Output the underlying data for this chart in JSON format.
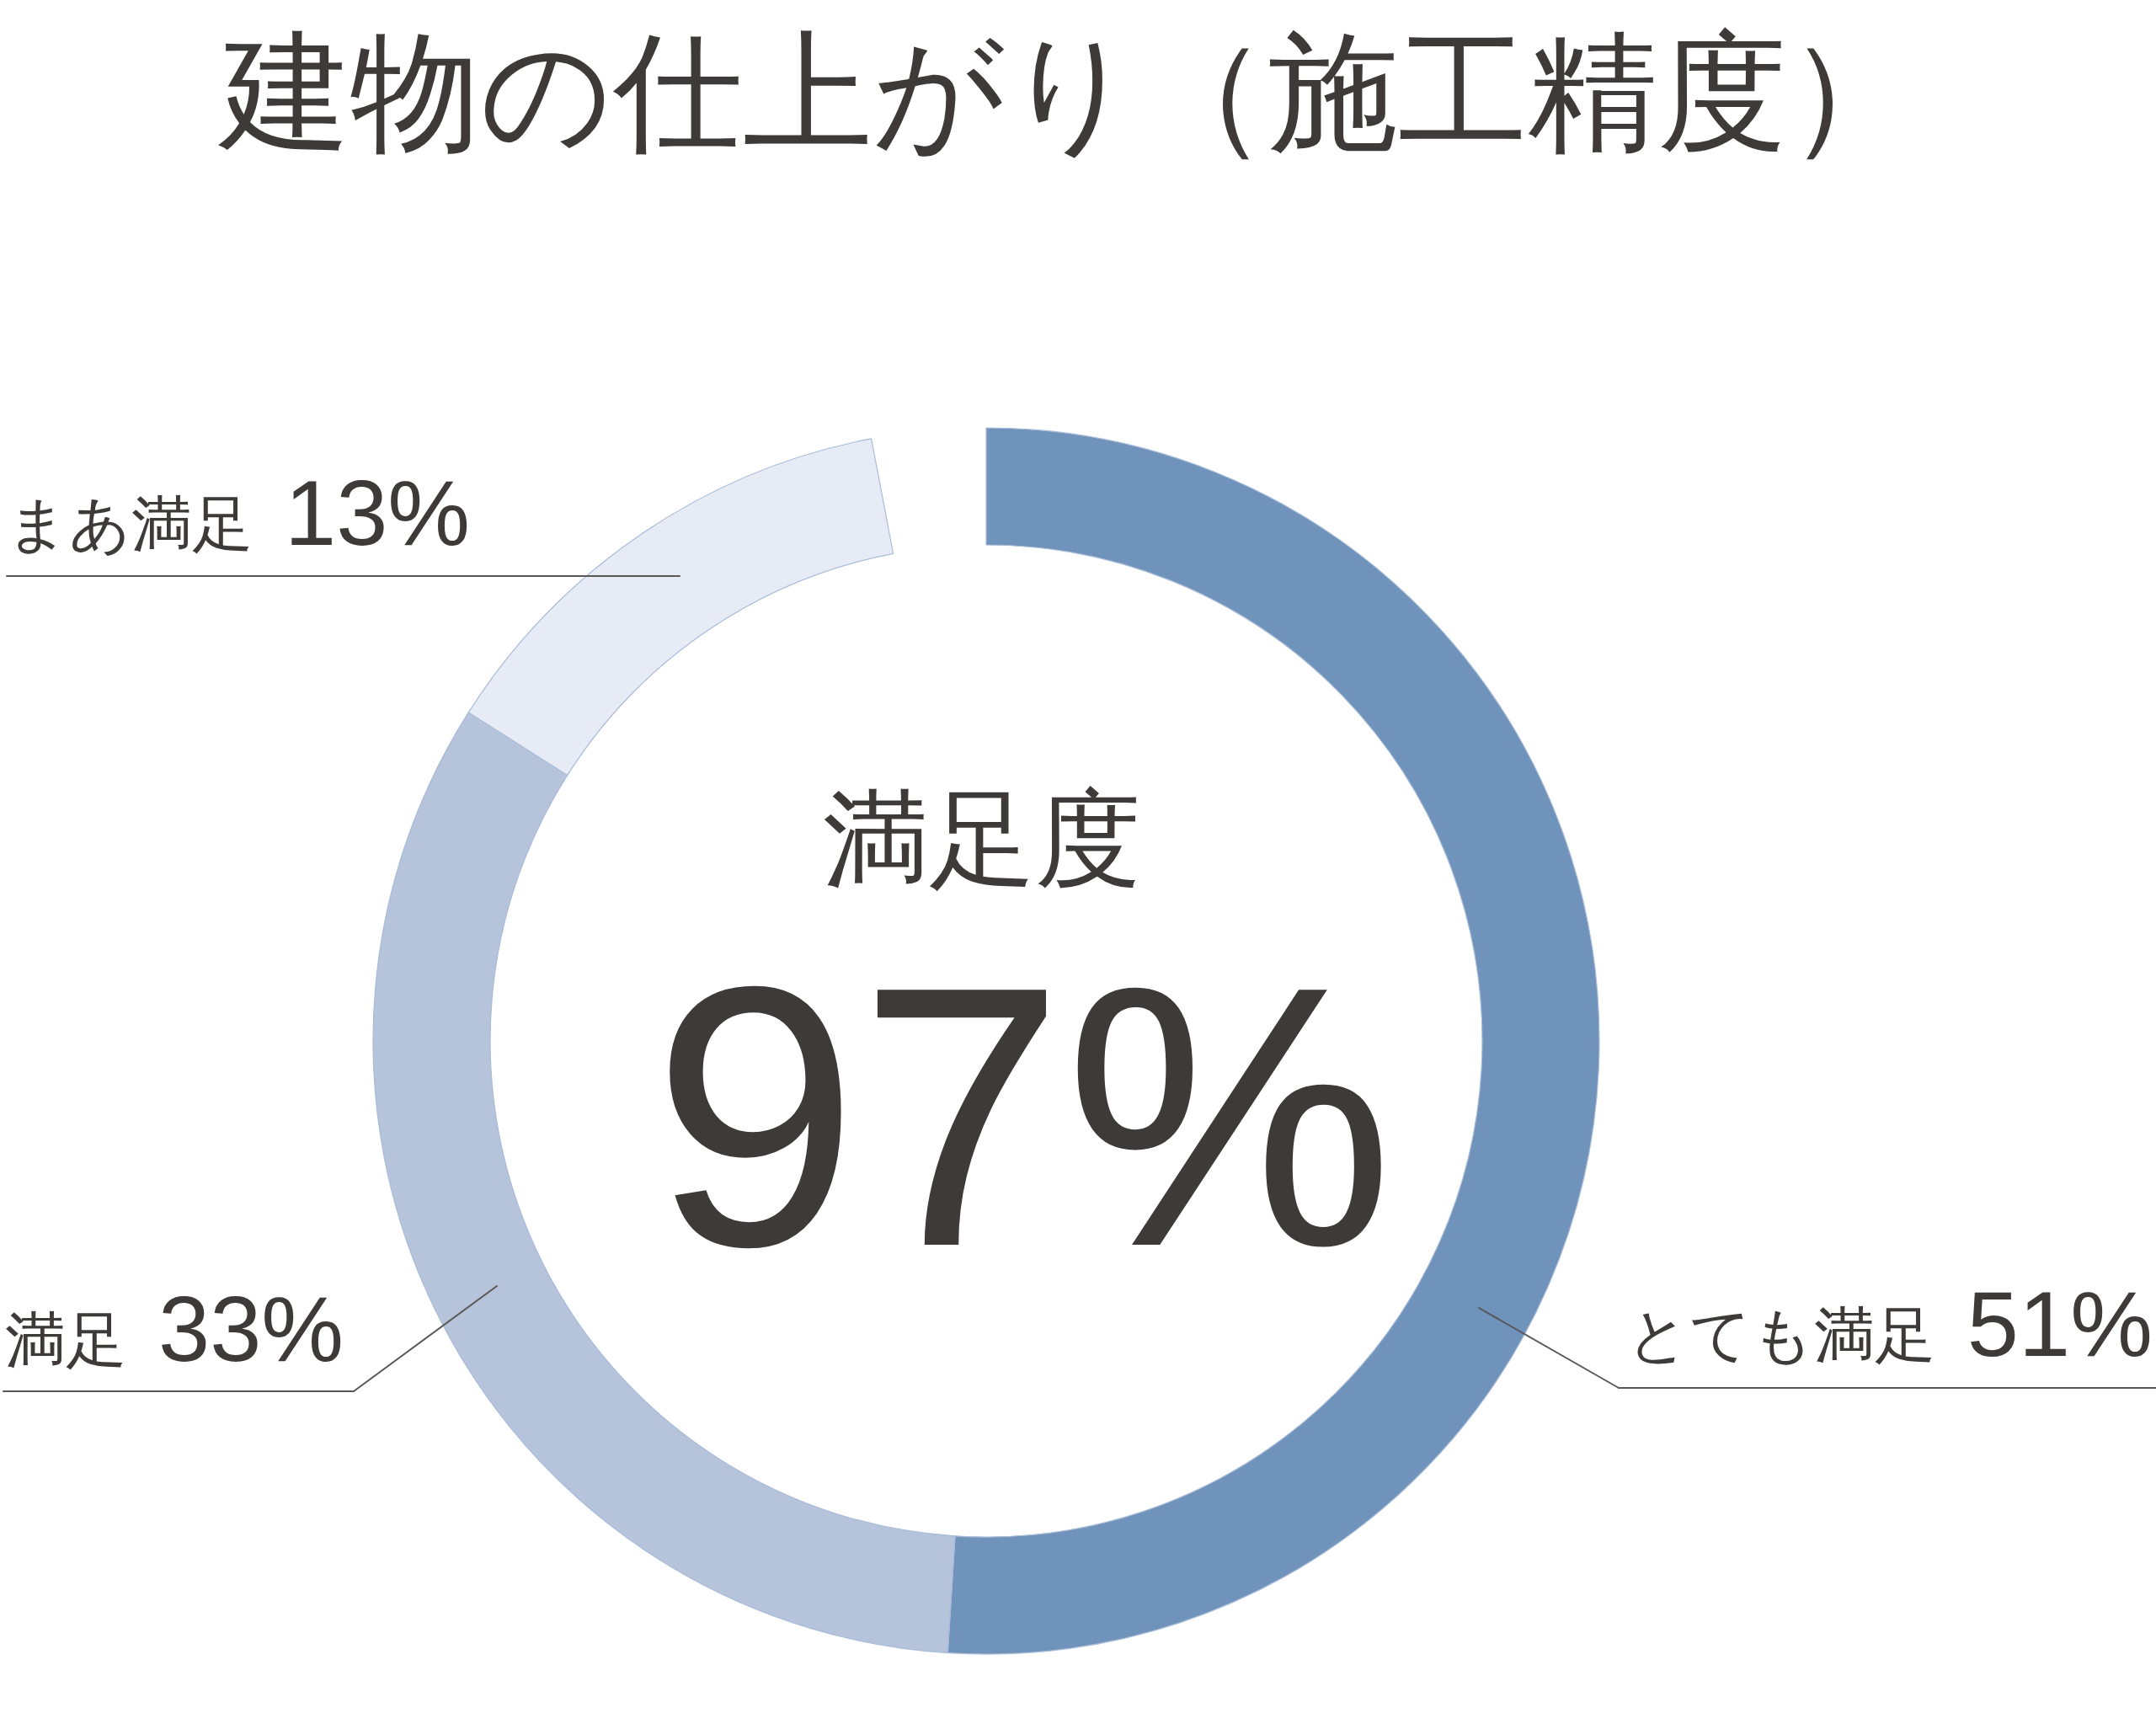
{
  "chart_data": {
    "type": "donut",
    "title": "建物の仕上がり（施工精度）",
    "categories": [
      "とても満足",
      "満足",
      "まあ満足"
    ],
    "values": [
      51,
      33,
      13
    ],
    "value_labels": [
      "51%",
      "33%",
      "13%"
    ],
    "colors": [
      "#6f93bb",
      "#b5c3db",
      "#e6ebf6"
    ],
    "annotations": [
      "満足度",
      "97%"
    ]
  }
}
